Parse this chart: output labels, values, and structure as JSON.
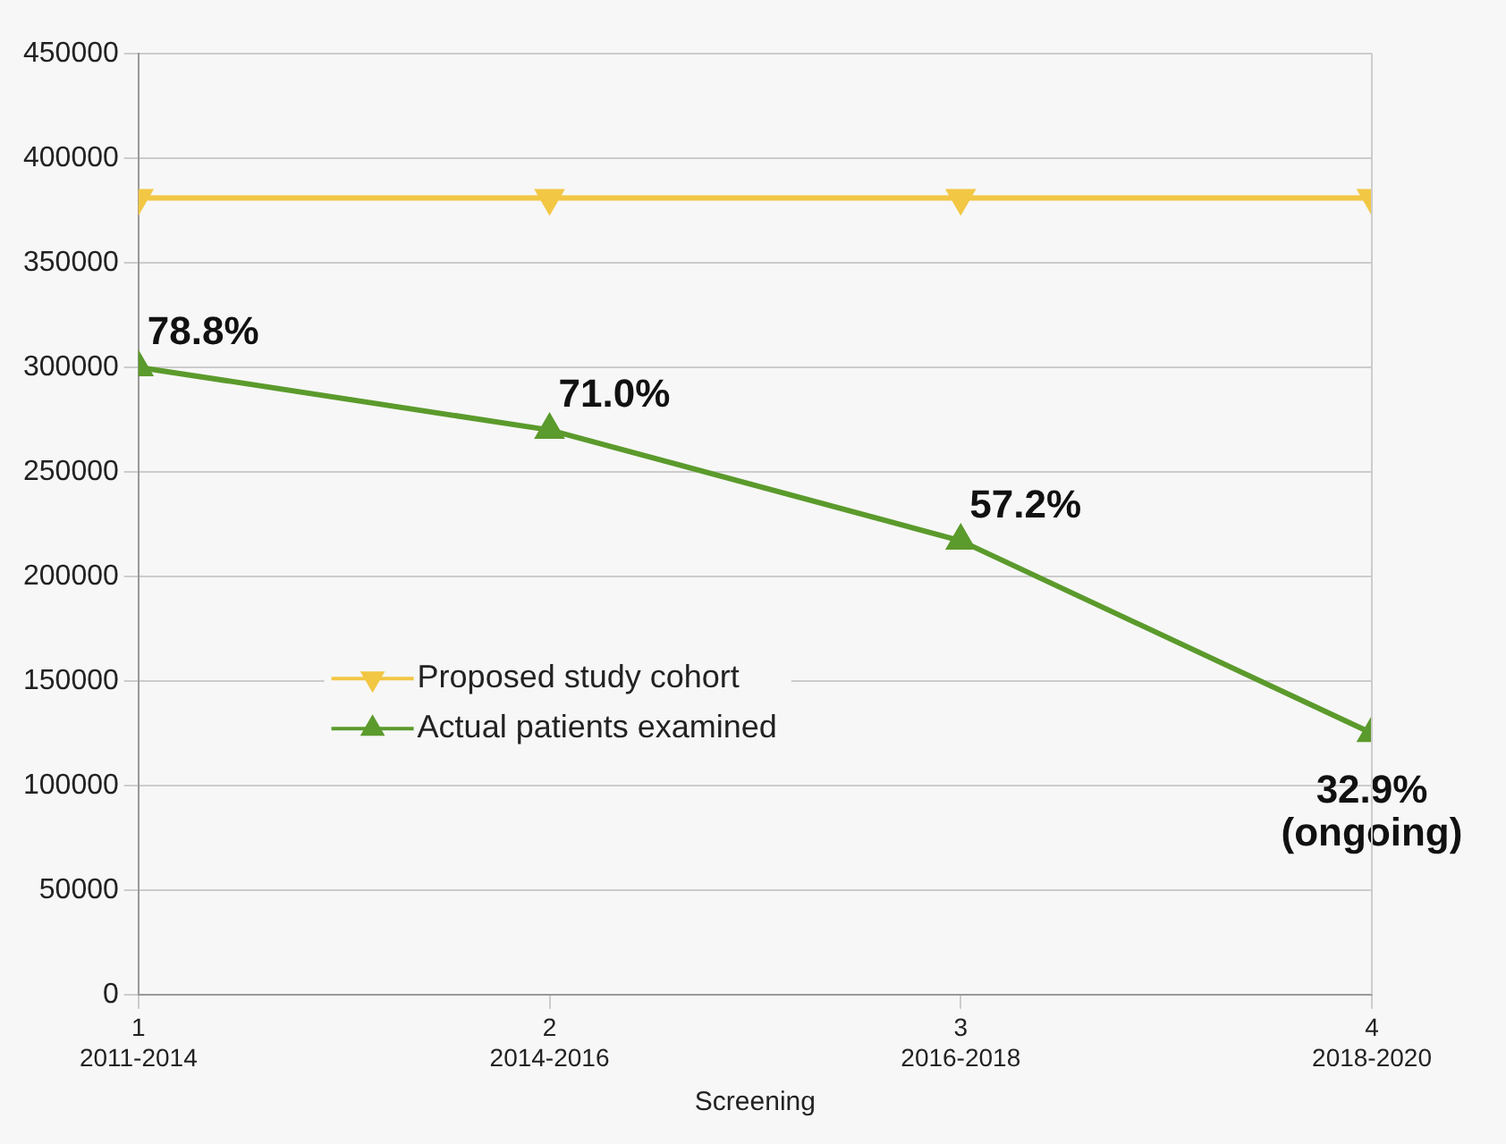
{
  "chart_data": {
    "type": "line",
    "xlabel": "Screening",
    "categories": [
      "1\n2011-2014",
      "2\n2014-2016",
      "3\n2016-2018",
      "4\n2018-2020"
    ],
    "ylim": [
      0,
      450000
    ],
    "yticks": [
      0,
      50000,
      100000,
      150000,
      200000,
      250000,
      300000,
      350000,
      400000,
      450000
    ],
    "grid": "y",
    "legend": "center",
    "marker": "triangle",
    "series": [
      {
        "name": "Proposed study cohort",
        "color": "#f2c744",
        "values": [
          381000,
          381000,
          381000,
          381000
        ]
      },
      {
        "name": "Actual patients examined",
        "color": "#5b9a2c",
        "values": [
          300000,
          270000,
          217000,
          125000
        ]
      }
    ],
    "annotations": [
      {
        "text": "78.8%",
        "x": "1\n2011-2014",
        "y": 300000
      },
      {
        "text": "71.0%",
        "x": "2\n2014-2016",
        "y": 270000
      },
      {
        "text": "57.2%",
        "x": "3\n2016-2018",
        "y": 217000
      },
      {
        "text": "32.9%\n(ongoing)",
        "x": "4\n2018-2020",
        "y": 125000
      }
    ]
  }
}
